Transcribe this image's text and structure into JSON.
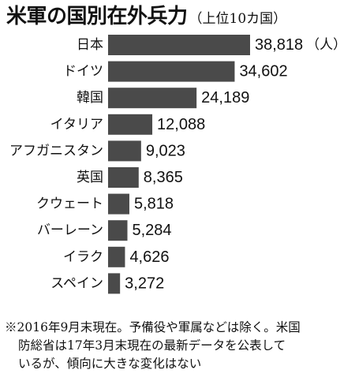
{
  "chart_data": {
    "type": "bar",
    "orientation": "horizontal",
    "title": "米軍の国別在外兵力",
    "subtitle": "（上位10カ国）",
    "unit_label": "（人）",
    "categories": [
      "日本",
      "ドイツ",
      "韓国",
      "イタリア",
      "アフガニスタン",
      "英国",
      "クウェート",
      "バーレーン",
      "イラク",
      "スペイン"
    ],
    "values": [
      38818,
      34602,
      24189,
      12088,
      9023,
      8365,
      5818,
      5284,
      4626,
      3272
    ],
    "value_labels": [
      "38,818",
      "34,602",
      "24,189",
      "12,088",
      "9,023",
      "8,365",
      "5,818",
      "5,284",
      "4,626",
      "3,272"
    ],
    "xlim": [
      0,
      38818
    ],
    "grid": false,
    "legend": "none",
    "bar_color": "#4a4a4a"
  },
  "footnote": {
    "lines": [
      "※2016年9月末現在。予備役や軍属などは除く。米国",
      "防総省は17年3月末現在の最新データを公表して",
      "いるが、傾向に大きな変化はない"
    ]
  }
}
